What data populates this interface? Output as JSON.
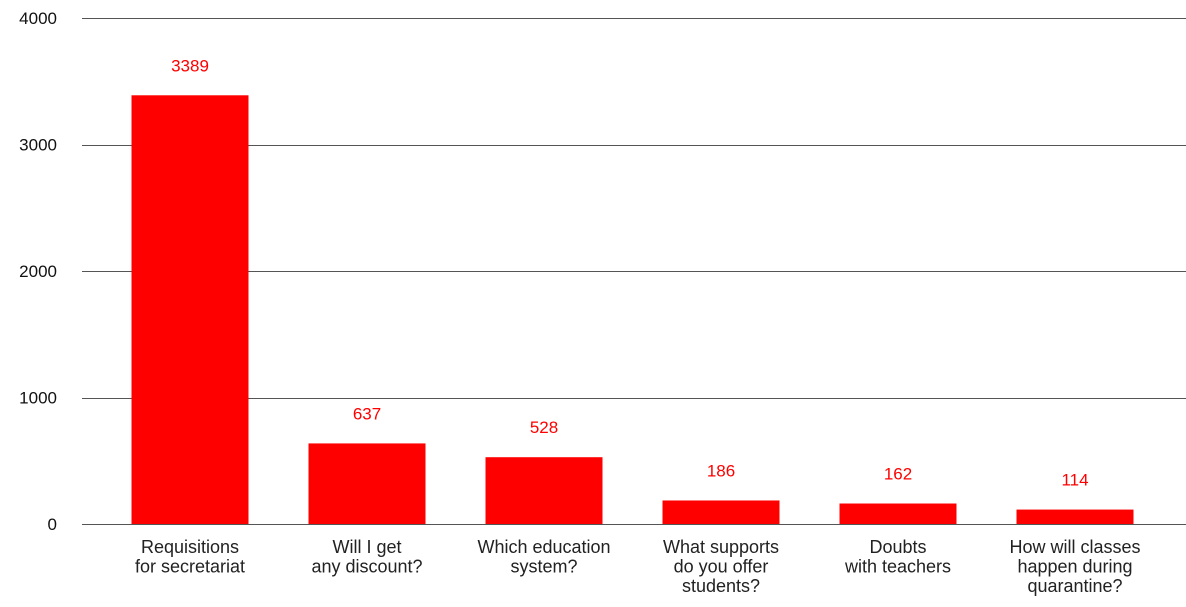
{
  "chart_data": {
    "type": "bar",
    "categories": [
      [
        "Requisitions",
        "for secretariat"
      ],
      [
        "Will I get",
        "any discount?"
      ],
      [
        "Which education",
        "system?"
      ],
      [
        "What supports",
        "do you offer",
        "students?"
      ],
      [
        "Doubts",
        "with teachers"
      ],
      [
        "How will classes",
        "happen during",
        "quarantine?"
      ]
    ],
    "values": [
      3389,
      637,
      528,
      186,
      162,
      114
    ],
    "data_labels": [
      "3389",
      "637",
      "528",
      "186",
      "162",
      "114"
    ],
    "ylim": [
      0,
      4000
    ],
    "yticks": [
      0,
      1000,
      2000,
      3000,
      4000
    ],
    "ytick_labels": [
      "0",
      "1000",
      "2000",
      "3000",
      "4000"
    ],
    "grid": true,
    "legend": "none",
    "bar_color": "#ff0000",
    "label_color": "#ff0000"
  }
}
